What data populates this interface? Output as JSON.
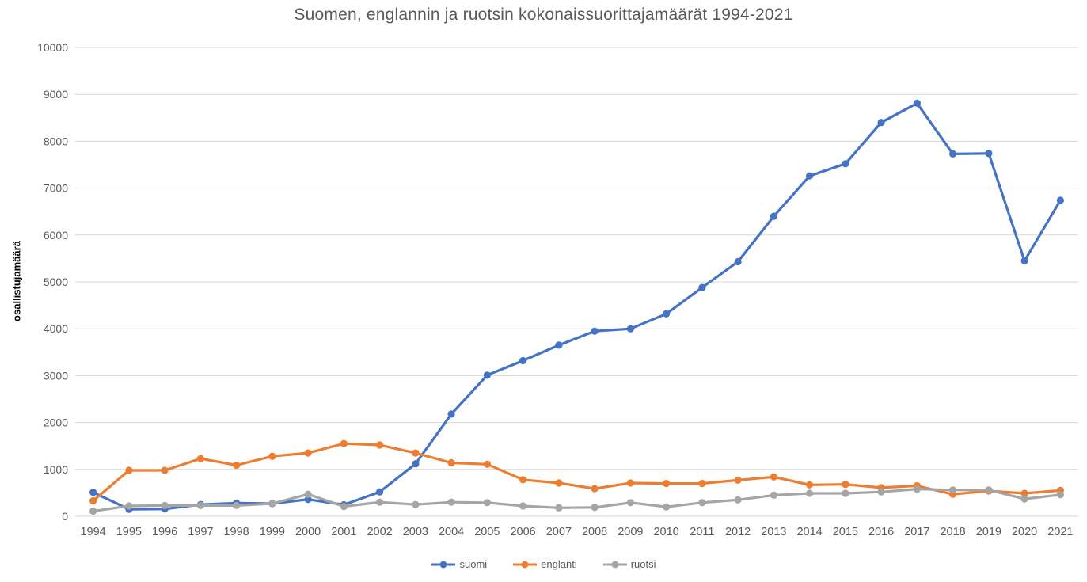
{
  "chart_data": {
    "type": "line",
    "title": "Suomen, englannin ja ruotsin kokonaissuorittajamäärät 1994-2021",
    "ylabel": "osallistujamäärä",
    "xlabel": "",
    "x": [
      1994,
      1995,
      1996,
      1997,
      1998,
      1999,
      2000,
      2001,
      2002,
      2003,
      2004,
      2005,
      2006,
      2007,
      2008,
      2009,
      2010,
      2011,
      2012,
      2013,
      2014,
      2015,
      2016,
      2017,
      2018,
      2019,
      2020,
      2021
    ],
    "series": [
      {
        "name": "suomi",
        "color": "#4472C4",
        "values": [
          510,
          150,
          155,
          250,
          280,
          270,
          360,
          245,
          520,
          1120,
          2180,
          3010,
          3320,
          3650,
          3950,
          4000,
          4320,
          4880,
          5430,
          6400,
          7260,
          7520,
          8400,
          8810,
          7730,
          7740,
          5450,
          6740
        ]
      },
      {
        "name": "englanti",
        "color": "#ED7D31",
        "values": [
          330,
          980,
          980,
          1230,
          1090,
          1280,
          1350,
          1550,
          1520,
          1350,
          1140,
          1110,
          780,
          710,
          590,
          710,
          700,
          700,
          770,
          840,
          670,
          680,
          610,
          650,
          470,
          540,
          490,
          550
        ]
      },
      {
        "name": "ruotsi",
        "color": "#A5A5A5",
        "values": [
          110,
          220,
          230,
          230,
          230,
          270,
          470,
          210,
          300,
          250,
          300,
          290,
          220,
          180,
          190,
          290,
          200,
          290,
          350,
          450,
          490,
          490,
          520,
          580,
          560,
          560,
          370,
          460
        ]
      }
    ],
    "ylim": [
      0,
      10000
    ],
    "ytick_step": 1000,
    "yticks": [
      "0",
      "1000",
      "2000",
      "3000",
      "4000",
      "5000",
      "6000",
      "7000",
      "8000",
      "9000",
      "10000"
    ],
    "grid": true,
    "legend_position": "bottom",
    "gridline_color": "#D9D9D9",
    "axis_text_color": "#595959",
    "title_color": "#595959",
    "background": "#FFFFFF"
  }
}
